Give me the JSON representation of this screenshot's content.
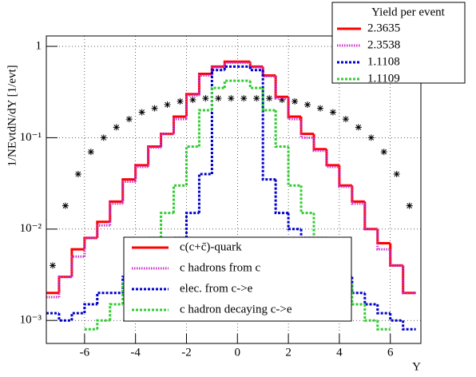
{
  "chart_data": {
    "type": "step",
    "ylabel": "1/NEvtdN/dY [1/evt]",
    "xlabel": "Y",
    "xlim": [
      -7.5,
      7.2
    ],
    "xticks": [
      -6,
      -4,
      -2,
      0,
      2,
      4,
      6
    ],
    "ylim": [
      0.00056,
      1.3
    ],
    "yticks": [
      {
        "value": 0.001,
        "label": "10⁻³"
      },
      {
        "value": 0.01,
        "label": "10⁻²"
      },
      {
        "value": 0.1,
        "label": "10⁻¹"
      },
      1
    ],
    "log_y": true,
    "grid": true,
    "legend": "lower center",
    "x": [
      -7.25,
      -6.75,
      -6.25,
      -5.75,
      -5.25,
      -4.75,
      -4.25,
      -3.75,
      -3.25,
      -2.75,
      -2.25,
      -1.75,
      -1.25,
      -0.75,
      -0.25,
      0.25,
      0.75,
      1.25,
      1.75,
      2.25,
      2.75,
      3.25,
      3.75,
      4.25,
      4.75,
      5.25,
      5.75,
      6.25,
      6.75
    ],
    "series": [
      {
        "color": "#000000",
        "marker": "star",
        "values": [
          0.004,
          0.018,
          0.04,
          0.07,
          0.1,
          0.13,
          0.16,
          0.19,
          0.21,
          0.23,
          0.25,
          0.26,
          0.27,
          0.27,
          0.27,
          0.27,
          0.27,
          0.27,
          0.26,
          0.25,
          0.23,
          0.21,
          0.19,
          0.16,
          0.13,
          0.1,
          0.07,
          0.04,
          0.018
        ]
      },
      {
        "name": "c(c+c̄)-quark",
        "color": "#ff0000",
        "style": "solid",
        "values": [
          0.002,
          0.003,
          0.006,
          0.008,
          0.012,
          0.02,
          0.035,
          0.05,
          0.08,
          0.11,
          0.17,
          0.3,
          0.5,
          0.6,
          0.68,
          0.68,
          0.6,
          0.48,
          0.28,
          0.17,
          0.11,
          0.075,
          0.05,
          0.03,
          0.02,
          0.01,
          0.007,
          0.004,
          0.002
        ]
      },
      {
        "name": "c hadrons from c",
        "color": "#cc33cc",
        "style": "dotted",
        "values": [
          0.0018,
          0.003,
          0.005,
          0.008,
          0.011,
          0.019,
          0.033,
          0.048,
          0.078,
          0.11,
          0.16,
          0.29,
          0.48,
          0.59,
          0.66,
          0.66,
          0.59,
          0.47,
          0.27,
          0.16,
          0.1,
          0.072,
          0.048,
          0.029,
          0.019,
          0.01,
          0.006,
          0.004,
          0.002
        ]
      },
      {
        "name": "elec. from c->e",
        "color": "#0000cc",
        "style": "dashed",
        "values": [
          0.0012,
          0.001,
          0.0012,
          0.0015,
          0.002,
          0.002,
          0.003,
          0.004,
          0.005,
          0.006,
          0.008,
          0.015,
          0.04,
          0.55,
          0.6,
          0.6,
          0.55,
          0.035,
          0.015,
          0.01,
          0.008,
          0.006,
          0.004,
          0.003,
          0.002,
          0.0015,
          0.0012,
          0.001,
          0.0008
        ]
      },
      {
        "name": "c hadron decaying c->e",
        "color": "#33cc33",
        "style": "dashed",
        "values": [
          null,
          null,
          null,
          0.0008,
          0.001,
          0.0015,
          0.0025,
          0.004,
          0.008,
          0.015,
          0.03,
          0.08,
          0.2,
          0.35,
          0.42,
          0.42,
          0.35,
          0.2,
          0.08,
          0.03,
          0.015,
          0.008,
          0.004,
          0.0025,
          0.0015,
          0.001,
          0.0008,
          null,
          null
        ]
      }
    ],
    "stats": {
      "title": "Yield per event",
      "values": [
        2.3635,
        2.3538,
        1.1108,
        1.1109
      ]
    }
  }
}
